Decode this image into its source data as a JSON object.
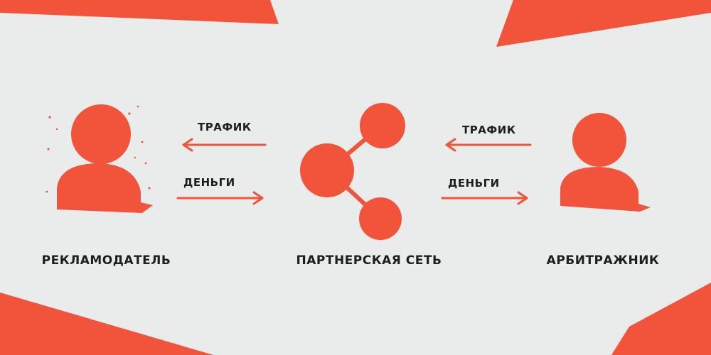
{
  "colors": {
    "background": "#e9ecea",
    "accent": "#f2533b",
    "text": "#1e1e1e"
  },
  "nodes": {
    "advertiser": {
      "label": "РЕКЛАМОДАТЕЛЬ",
      "icon": "person-icon"
    },
    "network": {
      "label": "ПАРТНЕРСКАЯ СЕТЬ",
      "icon": "share-network-icon"
    },
    "arbitrager": {
      "label": "АРБИТРАЖНИК",
      "icon": "person-icon"
    }
  },
  "flows": {
    "left_traffic": "ТРАФИК",
    "left_money": "ДЕНЬГИ",
    "right_traffic": "ТРАФИК",
    "right_money": "ДЕНЬГИ"
  }
}
